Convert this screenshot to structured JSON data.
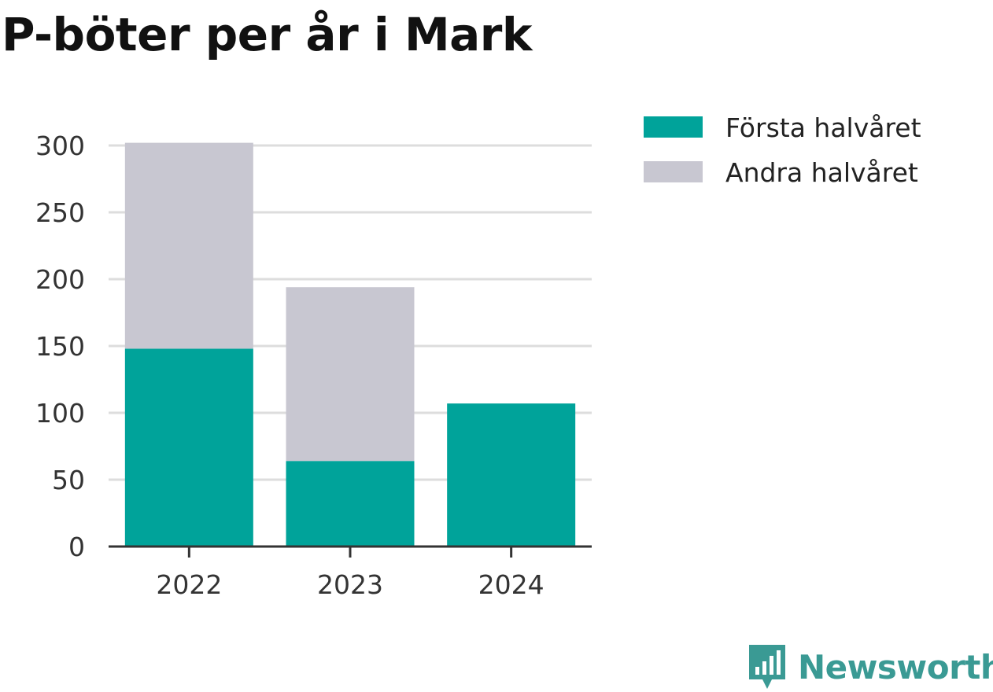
{
  "chart_data": {
    "type": "bar",
    "stacked": true,
    "title": "P-böter per år i Mark",
    "categories": [
      "2022",
      "2023",
      "2024"
    ],
    "series": [
      {
        "name": "Första halvåret",
        "values": [
          148,
          64,
          107
        ],
        "color": "#00a39a"
      },
      {
        "name": "Andra halvåret",
        "values": [
          154,
          130,
          0
        ],
        "color": "#c8c7d1"
      }
    ],
    "yticks": [
      0,
      50,
      100,
      150,
      200,
      250,
      300
    ],
    "ylim": [
      0,
      300
    ],
    "grid": true,
    "legend_position": "right",
    "xlabel": "",
    "ylabel": ""
  },
  "brand": {
    "name": "Newsworthy",
    "icon": "newsworthy-logo-icon",
    "color": "#3a9a94"
  }
}
